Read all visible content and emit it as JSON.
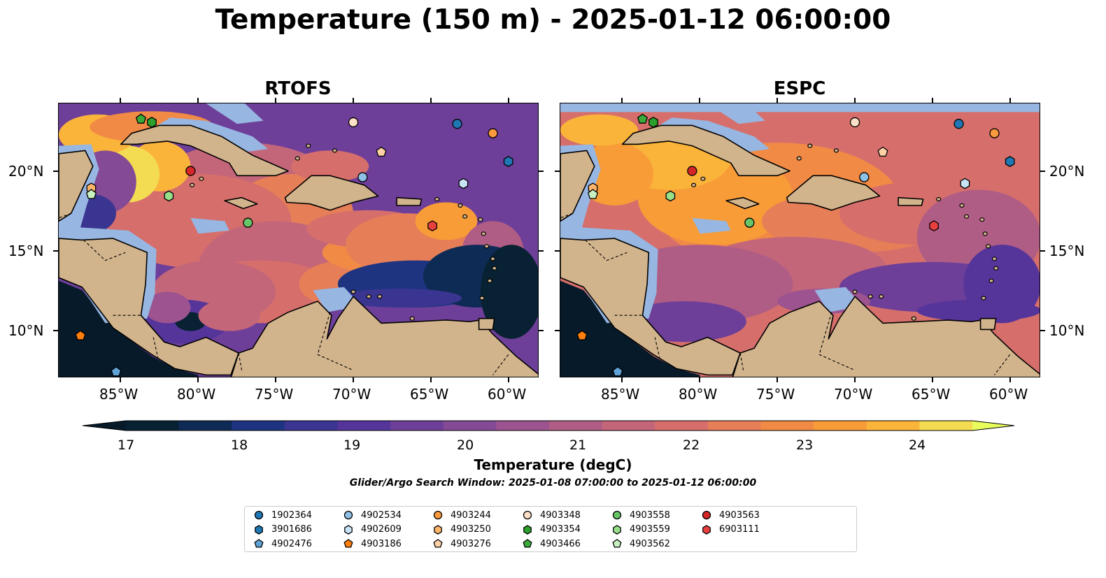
{
  "title": "Temperature (150 m) - 2025-01-12 06:00:00",
  "panels": [
    {
      "title": "RTOFS"
    },
    {
      "title": "ESPC"
    }
  ],
  "map": {
    "lon_range": [
      -89,
      -58
    ],
    "lat_range": [
      7,
      24.5
    ],
    "lon_ticks": [
      "85°W",
      "80°W",
      "75°W",
      "70°W",
      "65°W",
      "60°W"
    ],
    "lat_ticks": [
      "20°N",
      "15°N",
      "10°N"
    ],
    "colors": {
      "land": "#d2b48c",
      "shelf": "#97b6e1",
      "coast": "#000000"
    }
  },
  "colorbar": {
    "label": "Temperature (degC)",
    "ticks": [
      "17",
      "18",
      "19",
      "20",
      "21",
      "22",
      "23",
      "24"
    ],
    "range": [
      16.5,
      24.5
    ],
    "colors": [
      "#082133",
      "#0e2b55",
      "#1f3480",
      "#3a3591",
      "#56359b",
      "#6e3f99",
      "#854a95",
      "#9c5390",
      "#b05d85",
      "#c4667a",
      "#d66f6b",
      "#e67e58",
      "#f18a45",
      "#f89c38",
      "#fbb43a",
      "#f3dc52"
    ],
    "under_color": "#061a2a",
    "over_color": "#e8fc5c"
  },
  "search_window": "Glider/Argo Search Window: 2025-01-08 07:00:00 to 2025-01-12 06:00:00",
  "legend": [
    {
      "id": "1902364",
      "color": "#1f77b4",
      "marker": "circle"
    },
    {
      "id": "3901686",
      "color": "#1f77b4",
      "marker": "hexagon"
    },
    {
      "id": "4902476",
      "color": "#5fa2d6",
      "marker": "pentagon"
    },
    {
      "id": "4902534",
      "color": "#8fc1e6",
      "marker": "circle"
    },
    {
      "id": "4902609",
      "color": "#c9e3f6",
      "marker": "hexagon"
    },
    {
      "id": "4903186",
      "color": "#ff7f0e",
      "marker": "pentagon"
    },
    {
      "id": "4903244",
      "color": "#fd9a3e",
      "marker": "circle"
    },
    {
      "id": "4903250",
      "color": "#fdb46b",
      "marker": "hexagon"
    },
    {
      "id": "4903276",
      "color": "#fdd2a6",
      "marker": "pentagon"
    },
    {
      "id": "4903348",
      "color": "#fde0c8",
      "marker": "circle"
    },
    {
      "id": "4903354",
      "color": "#2ca02c",
      "marker": "hexagon"
    },
    {
      "id": "4903466",
      "color": "#3aab3a",
      "marker": "pentagon"
    },
    {
      "id": "4903558",
      "color": "#67c567",
      "marker": "circle"
    },
    {
      "id": "4903559",
      "color": "#98df8a",
      "marker": "hexagon"
    },
    {
      "id": "4903562",
      "color": "#c8f0c0",
      "marker": "pentagon"
    },
    {
      "id": "4903563",
      "color": "#d62728",
      "marker": "circle"
    },
    {
      "id": "6903111",
      "color": "#e8403e",
      "marker": "hexagon"
    }
  ],
  "floats": [
    {
      "id": "1902364",
      "lon": -63.3,
      "lat": 23.2
    },
    {
      "id": "3901686",
      "lon": -60.0,
      "lat": 20.8
    },
    {
      "id": "4902476",
      "lon": -85.3,
      "lat": 7.4
    },
    {
      "id": "4902534",
      "lon": -69.4,
      "lat": 19.8
    },
    {
      "id": "4902609",
      "lon": -62.9,
      "lat": 19.4
    },
    {
      "id": "4903186",
      "lon": -87.6,
      "lat": 9.7
    },
    {
      "id": "4903244",
      "lon": -61.0,
      "lat": 22.6
    },
    {
      "id": "4903250",
      "lon": -86.9,
      "lat": 19.1
    },
    {
      "id": "4903276",
      "lon": -68.2,
      "lat": 21.4
    },
    {
      "id": "4903348",
      "lon": -70.0,
      "lat": 23.3
    },
    {
      "id": "4903354",
      "lon": -83.0,
      "lat": 23.3
    },
    {
      "id": "4903466",
      "lon": -83.7,
      "lat": 23.5
    },
    {
      "id": "4903558",
      "lon": -76.8,
      "lat": 16.9
    },
    {
      "id": "4903559",
      "lon": -81.9,
      "lat": 18.6
    },
    {
      "id": "4903562",
      "lon": -86.9,
      "lat": 18.7
    },
    {
      "id": "4903563",
      "lon": -80.5,
      "lat": 20.2
    },
    {
      "id": "6903111",
      "lon": -64.9,
      "lat": 16.7
    }
  ]
}
